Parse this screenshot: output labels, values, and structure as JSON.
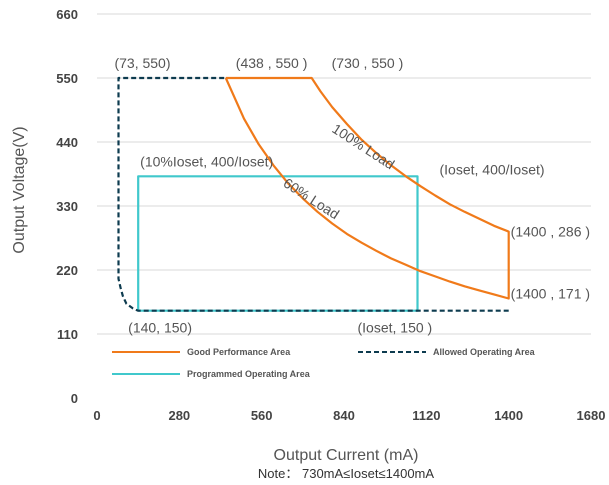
{
  "chart_data": {
    "type": "line",
    "xlabel": "Output Current (mA)",
    "ylabel": "Output Voltage(V)",
    "note": "Note： 730mA≤Ioset≤1400mA",
    "xlim": [
      0,
      1680
    ],
    "ylim": [
      0,
      660
    ],
    "x_ticks": [
      "0",
      "280",
      "560",
      "840",
      "1120",
      "1400",
      "1680"
    ],
    "y_ticks": [
      "0",
      "110",
      "220",
      "330",
      "440",
      "550",
      "660"
    ],
    "grid": "horizontal",
    "colors": {
      "good": "#f07a1a",
      "allowed": "#0d3b4f",
      "programmed": "#40c8cc",
      "grid": "#d9d9d9"
    },
    "series": [
      {
        "name": "Good Performance Area",
        "style": "solid",
        "x": [
          438,
          730,
          760,
          800,
          850,
          900,
          950,
          1000,
          1050,
          1100,
          1150,
          1200,
          1250,
          1300,
          1350,
          1400,
          1400,
          1350,
          1300,
          1250,
          1200,
          1150,
          1100,
          1050,
          1000,
          950,
          900,
          850,
          800,
          750,
          700,
          650,
          600,
          550,
          500,
          438
        ],
        "y": [
          550,
          550,
          527,
          500,
          471,
          444,
          421,
          400,
          381,
          364,
          348,
          333,
          320,
          308,
          296,
          286,
          171,
          178,
          185,
          192,
          200,
          209,
          218,
          229,
          240,
          253,
          267,
          282,
          300,
          320,
          343,
          369,
          400,
          436,
          480,
          550
        ]
      },
      {
        "name": "Allowed Operating Area",
        "style": "dashed",
        "x": [
          1400,
          140,
          122,
          100,
          88,
          80,
          73,
          73,
          438
        ],
        "y": [
          150,
          150,
          154,
          162,
          175,
          190,
          205,
          550,
          550
        ]
      },
      {
        "name": "Programmed Operating Area",
        "style": "solid",
        "x": [
          140,
          1090,
          1090,
          140,
          140
        ],
        "y": [
          150,
          150,
          381,
          381,
          150
        ]
      }
    ],
    "annotations": [
      {
        "text": "(73, 550)",
        "x": 73,
        "y": 550
      },
      {
        "text": "(438 , 550 )",
        "x": 438,
        "y": 550
      },
      {
        "text": "(730 , 550 )",
        "x": 730,
        "y": 550
      },
      {
        "text": "(10%Ioset, 400/Ioset)",
        "x": 140,
        "y": 381
      },
      {
        "text": "(Ioset, 400/Ioset)",
        "x": 1090,
        "y": 381
      },
      {
        "text": "100% Load",
        "x": 1000,
        "y": 400
      },
      {
        "text": "60% Load",
        "x": 800,
        "y": 300
      },
      {
        "text": "(1400 , 286 )",
        "x": 1400,
        "y": 286
      },
      {
        "text": "(1400 , 171 )",
        "x": 1400,
        "y": 171
      },
      {
        "text": "(140, 150)",
        "x": 140,
        "y": 150
      },
      {
        "text": "(Ioset, 150 )",
        "x": 1090,
        "y": 150
      }
    ],
    "legend": "bottom-left"
  }
}
